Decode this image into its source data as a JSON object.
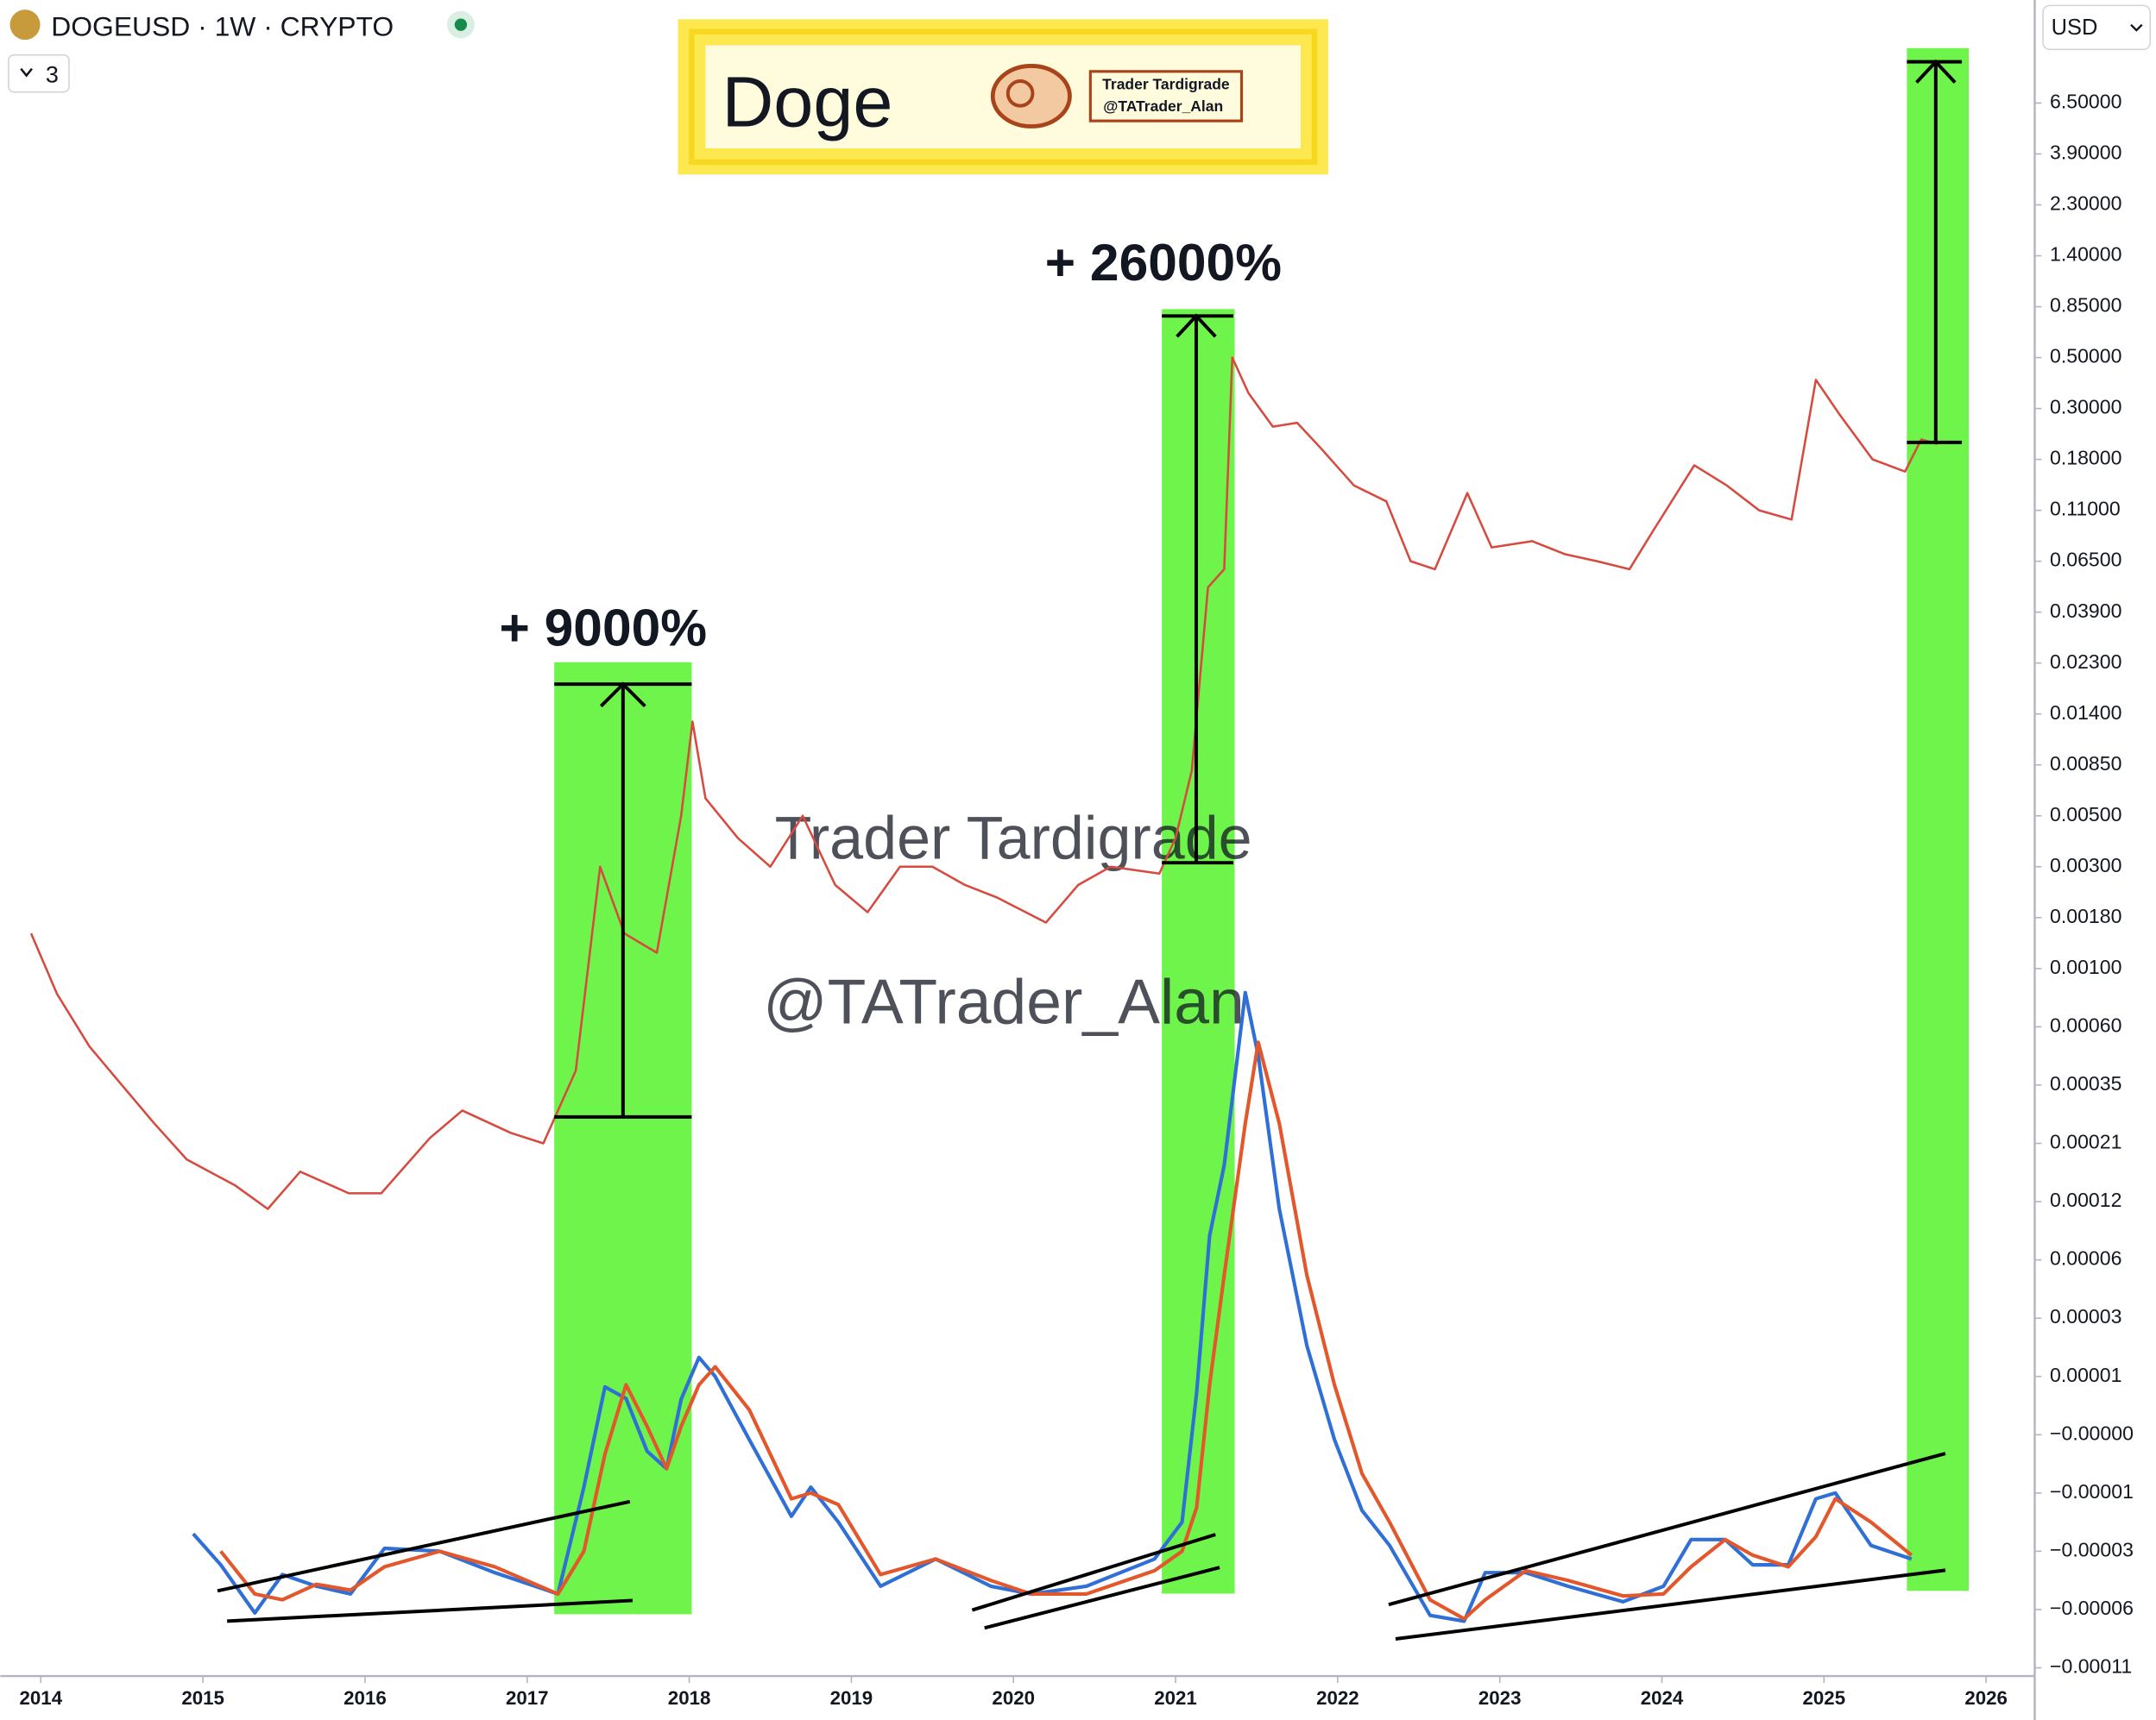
{
  "header": {
    "indicators": 3,
    "currency": "USD"
  },
  "banner": {
    "title": "Doge",
    "lines": [
      "Trader Tardigrade",
      "@TATrader_Alan"
    ]
  },
  "watermarks": [
    "Trader Tardigrade",
    "@TATrader_Alan"
  ],
  "chart_data": [
    {
      "type": "line",
      "title": "DOGEUSD · 1W · CRYPTO",
      "annotations": [
        "+ 9000%",
        "+ 26000%"
      ],
      "log_scale": true,
      "xlim": [
        2013.75,
        2026.3
      ],
      "xticks": [
        2014,
        2015,
        2016,
        2017,
        2018,
        2019,
        2020,
        2021,
        2022,
        2023,
        2024,
        2025,
        2026
      ],
      "ylim": [
        -0.00011,
        18
      ],
      "yticks": [
        {
          "value": 6.5,
          "label": "6.50000"
        },
        {
          "value": 3.9,
          "label": "3.90000"
        },
        {
          "value": 2.3,
          "label": "2.30000"
        },
        {
          "value": 1.4,
          "label": "1.40000"
        },
        {
          "value": 0.85,
          "label": "0.85000"
        },
        {
          "value": 0.5,
          "label": "0.50000"
        },
        {
          "value": 0.3,
          "label": "0.30000"
        },
        {
          "value": 0.18,
          "label": "0.18000"
        },
        {
          "value": 0.11,
          "label": "0.11000"
        },
        {
          "value": 0.065,
          "label": "0.06500"
        },
        {
          "value": 0.039,
          "label": "0.03900"
        },
        {
          "value": 0.023,
          "label": "0.02300"
        },
        {
          "value": 0.014,
          "label": "0.01400"
        },
        {
          "value": 0.0085,
          "label": "0.00850"
        },
        {
          "value": 0.005,
          "label": "0.00500"
        },
        {
          "value": 0.003,
          "label": "0.00300"
        },
        {
          "value": 0.0018,
          "label": "0.00180"
        },
        {
          "value": 0.001,
          "label": "0.00100"
        },
        {
          "value": 0.0006,
          "label": "0.00060"
        },
        {
          "value": 0.00035,
          "label": "0.00035"
        },
        {
          "value": 0.00021,
          "label": "0.00021"
        },
        {
          "value": 0.00012,
          "label": "0.00012"
        },
        {
          "value": 6e-05,
          "label": "0.00006"
        },
        {
          "value": 3e-05,
          "label": "0.00003"
        },
        {
          "value": 1e-05,
          "label": "0.00001"
        },
        {
          "value": -4e-06,
          "label": "−0.00000"
        },
        {
          "value": -1e-05,
          "label": "−0.00001"
        },
        {
          "value": -3e-05,
          "label": "−0.00003"
        },
        {
          "value": -6e-05,
          "label": "−0.00006"
        },
        {
          "value": -0.00011,
          "label": "−0.00011"
        }
      ],
      "x": [
        2013.94,
        2014.1,
        2014.3,
        2014.5,
        2014.7,
        2014.9,
        2015.2,
        2015.4,
        2015.6,
        2015.9,
        2016.1,
        2016.4,
        2016.6,
        2016.9,
        2017.1,
        2017.3,
        2017.45,
        2017.6,
        2017.8,
        2017.95,
        2018.02,
        2018.1,
        2018.3,
        2018.5,
        2018.7,
        2018.9,
        2019.1,
        2019.3,
        2019.5,
        2019.7,
        2019.9,
        2020.2,
        2020.4,
        2020.6,
        2020.9,
        2021.0,
        2021.1,
        2021.2,
        2021.3,
        2021.35,
        2021.45,
        2021.6,
        2021.75,
        2021.9,
        2022.1,
        2022.3,
        2022.45,
        2022.6,
        2022.8,
        2022.95,
        2023.2,
        2023.4,
        2023.6,
        2023.8,
        2023.95,
        2024.2,
        2024.4,
        2024.6,
        2024.8,
        2024.95,
        2025.1,
        2025.3,
        2025.5,
        2025.6,
        2025.7
      ],
      "series": [
        {
          "color": "#d64a3f",
          "values": [
            0.0015,
            0.0008,
            0.0005,
            0.00035,
            0.00025,
            0.00018,
            0.00014,
            0.00011,
            0.00016,
            0.00013,
            0.00013,
            0.00022,
            0.00028,
            0.00023,
            0.00021,
            0.0004,
            0.003,
            0.0015,
            0.0012,
            0.005,
            0.013,
            0.006,
            0.004,
            0.003,
            0.005,
            0.0025,
            0.0019,
            0.003,
            0.003,
            0.0025,
            0.0022,
            0.0017,
            0.0025,
            0.003,
            0.0028,
            0.004,
            0.008,
            0.05,
            0.06,
            0.5,
            0.35,
            0.25,
            0.26,
            0.2,
            0.14,
            0.12,
            0.065,
            0.06,
            0.13,
            0.075,
            0.08,
            0.07,
            0.065,
            0.06,
            0.09,
            0.17,
            0.14,
            0.11,
            0.1,
            0.4,
            0.28,
            0.18,
            0.16,
            0.22,
            0.21
          ]
        }
      ]
    },
    {
      "type": "line",
      "x": [
        2014.94,
        2015.11,
        2015.32,
        2015.49,
        2015.7,
        2015.91,
        2016.12,
        2016.46,
        2016.8,
        2017.19,
        2017.35,
        2017.48,
        2017.61,
        2017.74,
        2017.86,
        2017.95,
        2018.06,
        2018.16,
        2018.37,
        2018.63,
        2018.75,
        2018.92,
        2019.18,
        2019.52,
        2019.86,
        2020.11,
        2020.45,
        2020.87,
        2021.04,
        2021.13,
        2021.21,
        2021.3,
        2021.43,
        2021.51,
        2021.64,
        2021.81,
        2021.98,
        2022.15,
        2022.32,
        2022.57,
        2022.78,
        2022.91,
        2023.16,
        2023.42,
        2023.76,
        2024.01,
        2024.18,
        2024.39,
        2024.56,
        2024.78,
        2024.95,
        2025.07,
        2025.29,
        2025.54
      ],
      "series": [
        {
          "color": "#2f6fd6",
          "values": [
            -2.4e-05,
            -3.7e-05,
            -6.3e-05,
            -4.2e-05,
            -4.8e-05,
            -5.2e-05,
            -2.9e-05,
            -3e-05,
            -4.1e-05,
            -5.2e-05,
            -9.4e-06,
            7.5e-06,
            4.7e-06,
            -5.7e-06,
            -7.5e-06,
            4.5e-06,
            1.43e-05,
            1e-05,
            -4.5e-06,
            -1.8e-05,
            -9.4e-06,
            -2e-05,
            -4.8e-05,
            -3.4e-05,
            -4.8e-05,
            -5.2e-05,
            -4.8e-05,
            -3.4e-05,
            -2e-05,
            6.1e-06,
            8e-05,
            0.00017,
            0.00081,
            0.00046,
            0.00011,
            1.79e-05,
            -4.5e-06,
            -1.6e-05,
            -2.8e-05,
            -6.5e-05,
            -7e-05,
            -4.1e-05,
            -4.1e-05,
            -4.8e-05,
            -5.6e-05,
            -4.8e-05,
            -2.6e-05,
            -2.6e-05,
            -3.7e-05,
            -3.7e-05,
            -1.2e-05,
            -1e-05,
            -2.8e-05,
            -3.4e-05
          ]
        },
        {
          "color": "#e2572b",
          "values": [
            null,
            -3e-05,
            -5.2e-05,
            -5.5e-05,
            -4.7e-05,
            -5e-05,
            -3.8e-05,
            -3e-05,
            -3.8e-05,
            -5.2e-05,
            -3e-05,
            -6e-06,
            8e-06,
            -2e-06,
            -7.5e-06,
            -2e-06,
            8e-06,
            1.2e-05,
            2e-06,
            -1.2e-05,
            -1e-05,
            -1.4e-05,
            -4.2e-05,
            -3.4e-05,
            -4.5e-05,
            -5.2e-05,
            -5.2e-05,
            -4e-05,
            -3e-05,
            -1.5e-05,
            8e-06,
            5e-05,
            0.00025,
            0.00052,
            0.00025,
            5e-05,
            8e-06,
            -8e-06,
            -2e-05,
            -5.5e-05,
            -6.8e-05,
            -5.5e-05,
            -4e-05,
            -4.5e-05,
            -5.3e-05,
            -5.2e-05,
            -3.8e-05,
            -2.6e-05,
            -3.2e-05,
            -3.8e-05,
            -2.5e-05,
            -1.2e-05,
            -2e-05,
            -3.2e-05
          ]
        }
      ]
    }
  ]
}
